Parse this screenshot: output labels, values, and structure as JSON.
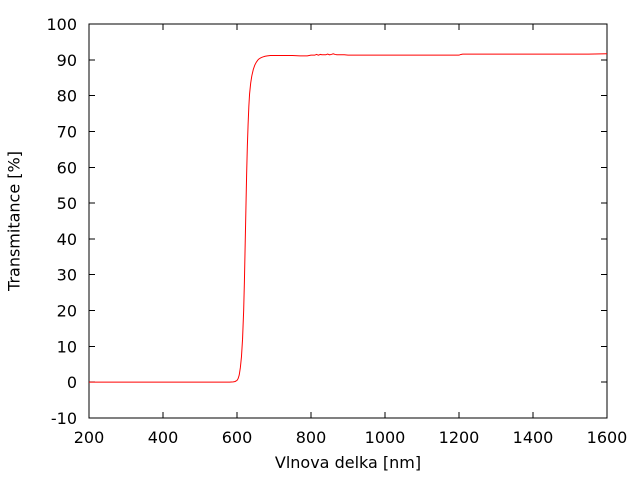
{
  "figure": {
    "background": "#ffffff",
    "border_color": "#000000",
    "text_color": "#000000"
  },
  "chart_data": {
    "type": "line",
    "title": "",
    "xlabel": "Vlnova delka [nm]",
    "ylabel": "Transmitance [%]",
    "xlim": [
      200,
      1600
    ],
    "ylim": [
      -10,
      100
    ],
    "xticks": [
      200,
      400,
      600,
      800,
      1000,
      1200,
      1400,
      1600
    ],
    "yticks": [
      -10,
      0,
      10,
      20,
      30,
      40,
      50,
      60,
      70,
      80,
      90,
      100
    ],
    "grid": false,
    "legend": "none",
    "series": [
      {
        "name": "transmittance",
        "color": "#ff0000",
        "x": [
          200,
          300,
          400,
          500,
          550,
          580,
          590,
          595,
          600,
          603,
          606,
          609,
          612,
          615,
          618,
          620,
          622,
          624,
          626,
          628,
          630,
          632,
          634,
          637,
          640,
          644,
          648,
          652,
          656,
          660,
          665,
          670,
          676,
          682,
          690,
          700,
          715,
          730,
          750,
          770,
          790,
          800,
          810,
          815,
          820,
          825,
          830,
          840,
          845,
          850,
          855,
          860,
          865,
          870,
          880,
          890,
          900,
          920,
          950,
          1000,
          1050,
          1100,
          1150,
          1200,
          1205,
          1210,
          1250,
          1300,
          1350,
          1400,
          1450,
          1500,
          1550,
          1600
        ],
        "y": [
          0,
          0,
          0,
          0,
          0,
          0,
          0.1,
          0.2,
          0.5,
          1,
          2,
          4,
          7,
          12,
          20,
          28,
          38,
          48,
          58,
          66,
          72,
          77,
          80.5,
          83.5,
          85.5,
          87.3,
          88.5,
          89.3,
          89.9,
          90.3,
          90.6,
          90.8,
          91.0,
          91.1,
          91.2,
          91.2,
          91.2,
          91.2,
          91.2,
          91.1,
          91.1,
          91.3,
          91.3,
          91.5,
          91.3,
          91.5,
          91.4,
          91.4,
          91.6,
          91.4,
          91.5,
          91.7,
          91.5,
          91.4,
          91.4,
          91.4,
          91.3,
          91.3,
          91.3,
          91.3,
          91.3,
          91.3,
          91.3,
          91.3,
          91.5,
          91.6,
          91.6,
          91.6,
          91.6,
          91.6,
          91.6,
          91.6,
          91.6,
          91.7
        ]
      }
    ]
  }
}
